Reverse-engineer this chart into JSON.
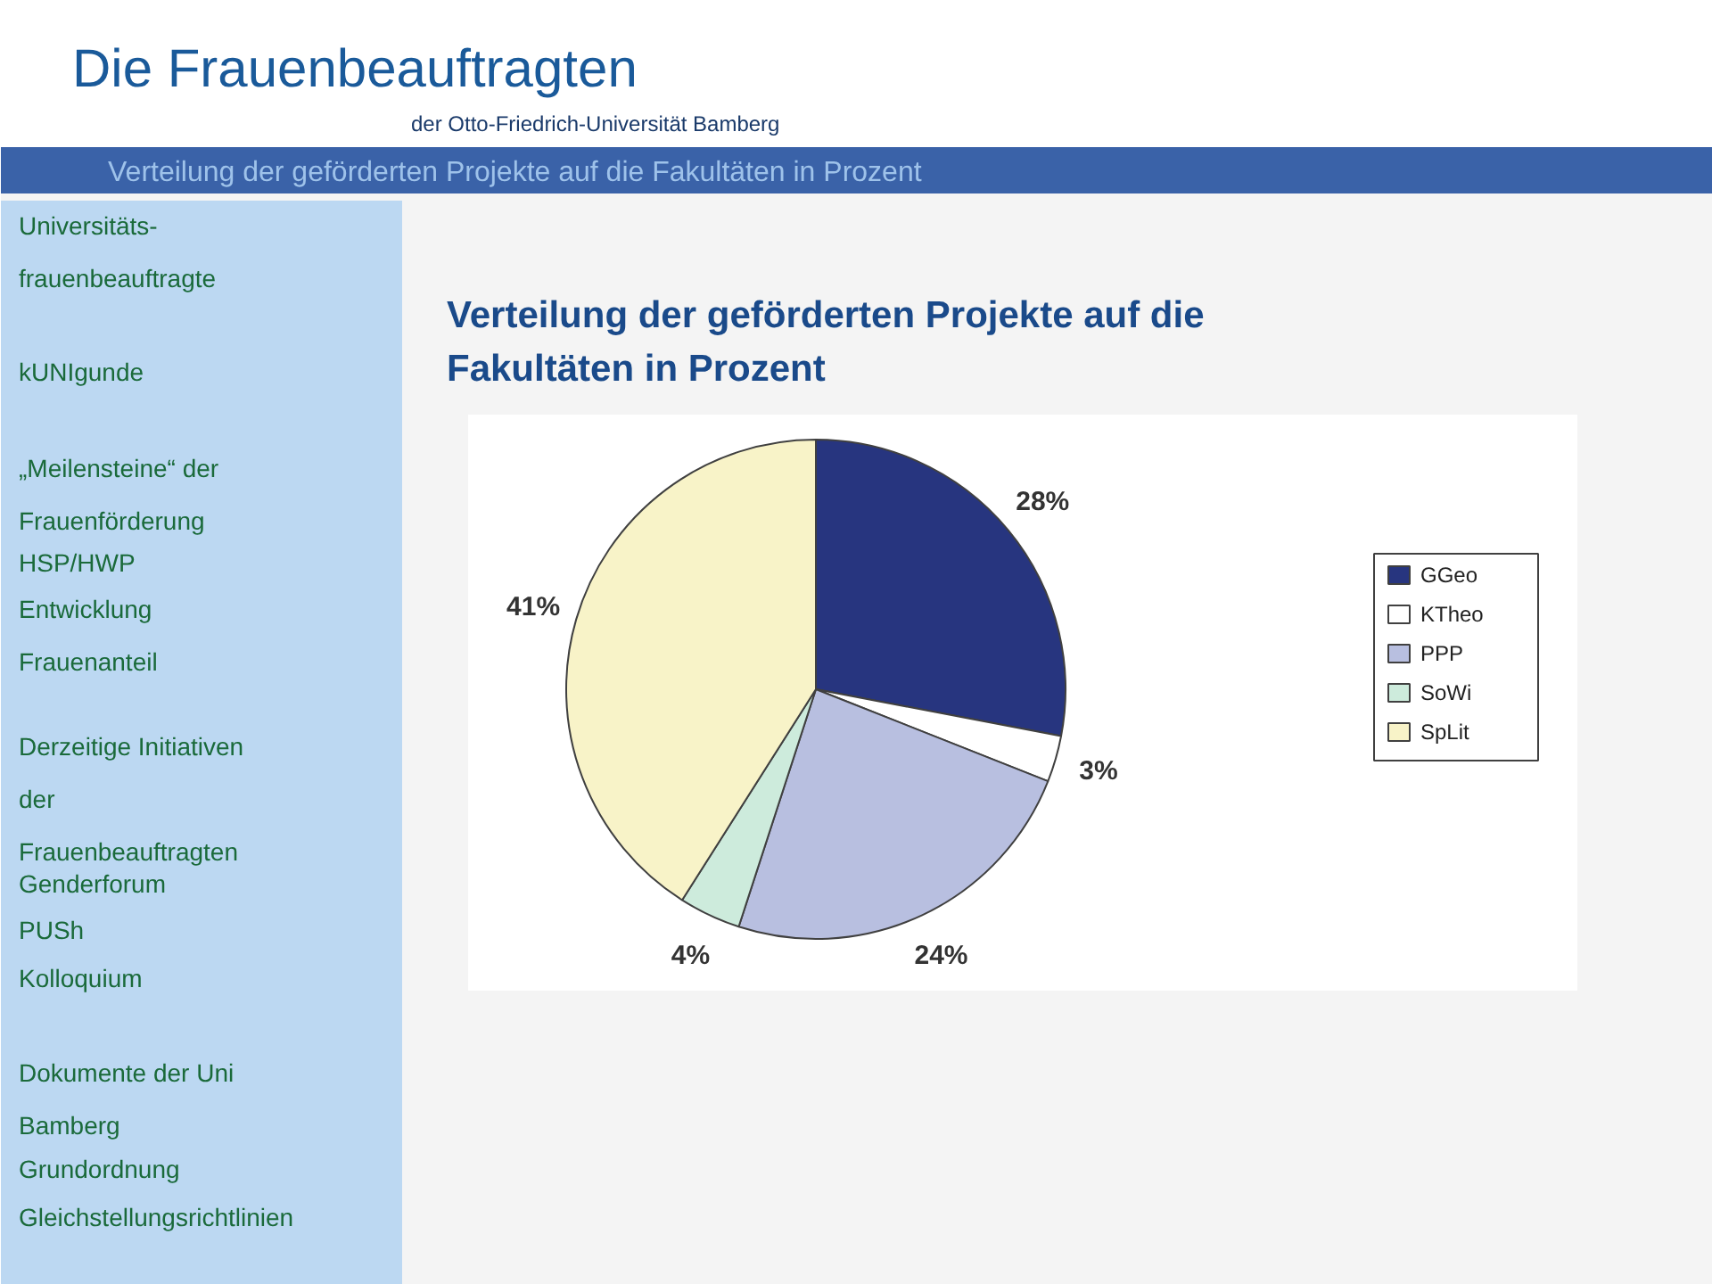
{
  "chart_data": {
    "type": "pie",
    "title": "Verteilung der geförderten Projekte auf die Fakultäten in Prozent",
    "categories": [
      "GGeo",
      "KTheo",
      "PPP",
      "SoWi",
      "SpLit"
    ],
    "values": [
      28,
      3,
      24,
      4,
      41
    ],
    "colors": [
      "#27357f",
      "#ffffff",
      "#b8bfe0",
      "#cdebdc",
      "#f8f3c8"
    ],
    "value_labels": [
      "28%",
      "3%",
      "24%",
      "4%",
      "41%"
    ],
    "legend": "right",
    "annotations": [
      "Die Frauenbeauftragten",
      "der Otto-Friedrich-Universität Bamberg",
      "Universitäts-\nfrauenbeauftragte",
      "kUNIgunde",
      "„Meilensteine“ der\nFrauenförderung",
      "HSP/HWP",
      "Entwicklung\n      Frauenanteil",
      "Derzeitige Initiativen\n      der\nFrauenbeauftragten",
      "Genderforum",
      "PUSh",
      "Kolloquium",
      "Dokumente der Uni\nBamberg",
      "Grundordnung",
      "Gleichstellungsrichtlinien"
    ]
  }
}
